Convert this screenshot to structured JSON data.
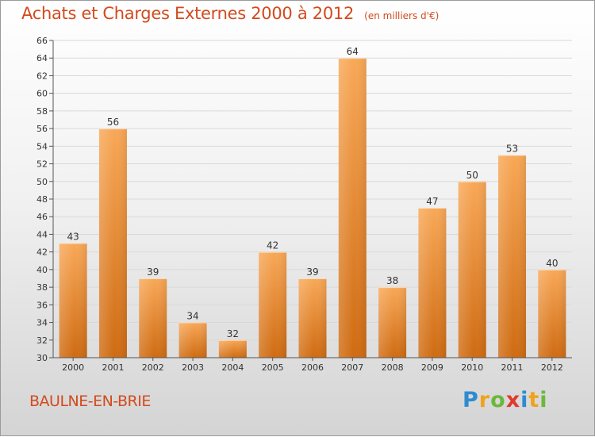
{
  "header": {
    "title": "Achats et Charges Externes 2000 à 2012",
    "subtitle": "(en milliers d'€)"
  },
  "footer": {
    "commune": "BAULNE-EN-BRIE",
    "logo_letters": [
      {
        "ch": "P",
        "color": "#2e8bd0"
      },
      {
        "ch": "r",
        "color": "#f0a21c"
      },
      {
        "ch": "o",
        "color": "#6bb83b"
      },
      {
        "ch": "x",
        "color": "#e03a2f"
      },
      {
        "ch": "i",
        "color": "#2e8bd0"
      },
      {
        "ch": "t",
        "color": "#f0a21c"
      },
      {
        "ch": "i",
        "color": "#6bb83b"
      }
    ]
  },
  "colors": {
    "title": "#d24a1e",
    "bar_top": "#f8a857",
    "bar_bottom": "#cf6b12",
    "grid": "#d9d9d9"
  },
  "chart_data": {
    "type": "bar",
    "title": "Achats et Charges Externes 2000 à 2012",
    "subtitle": "(en milliers d'€)",
    "categories": [
      "2000",
      "2001",
      "2002",
      "2003",
      "2004",
      "2005",
      "2006",
      "2007",
      "2008",
      "2009",
      "2010",
      "2011",
      "2012"
    ],
    "values": [
      43,
      56,
      39,
      34,
      32,
      42,
      39,
      64,
      38,
      47,
      50,
      53,
      40
    ],
    "ylim": [
      30,
      66
    ],
    "yticks": [
      30,
      32,
      34,
      36,
      38,
      40,
      42,
      44,
      46,
      48,
      50,
      52,
      54,
      56,
      58,
      60,
      62,
      64,
      66
    ],
    "grid": true,
    "xlabel": "",
    "ylabel": ""
  }
}
